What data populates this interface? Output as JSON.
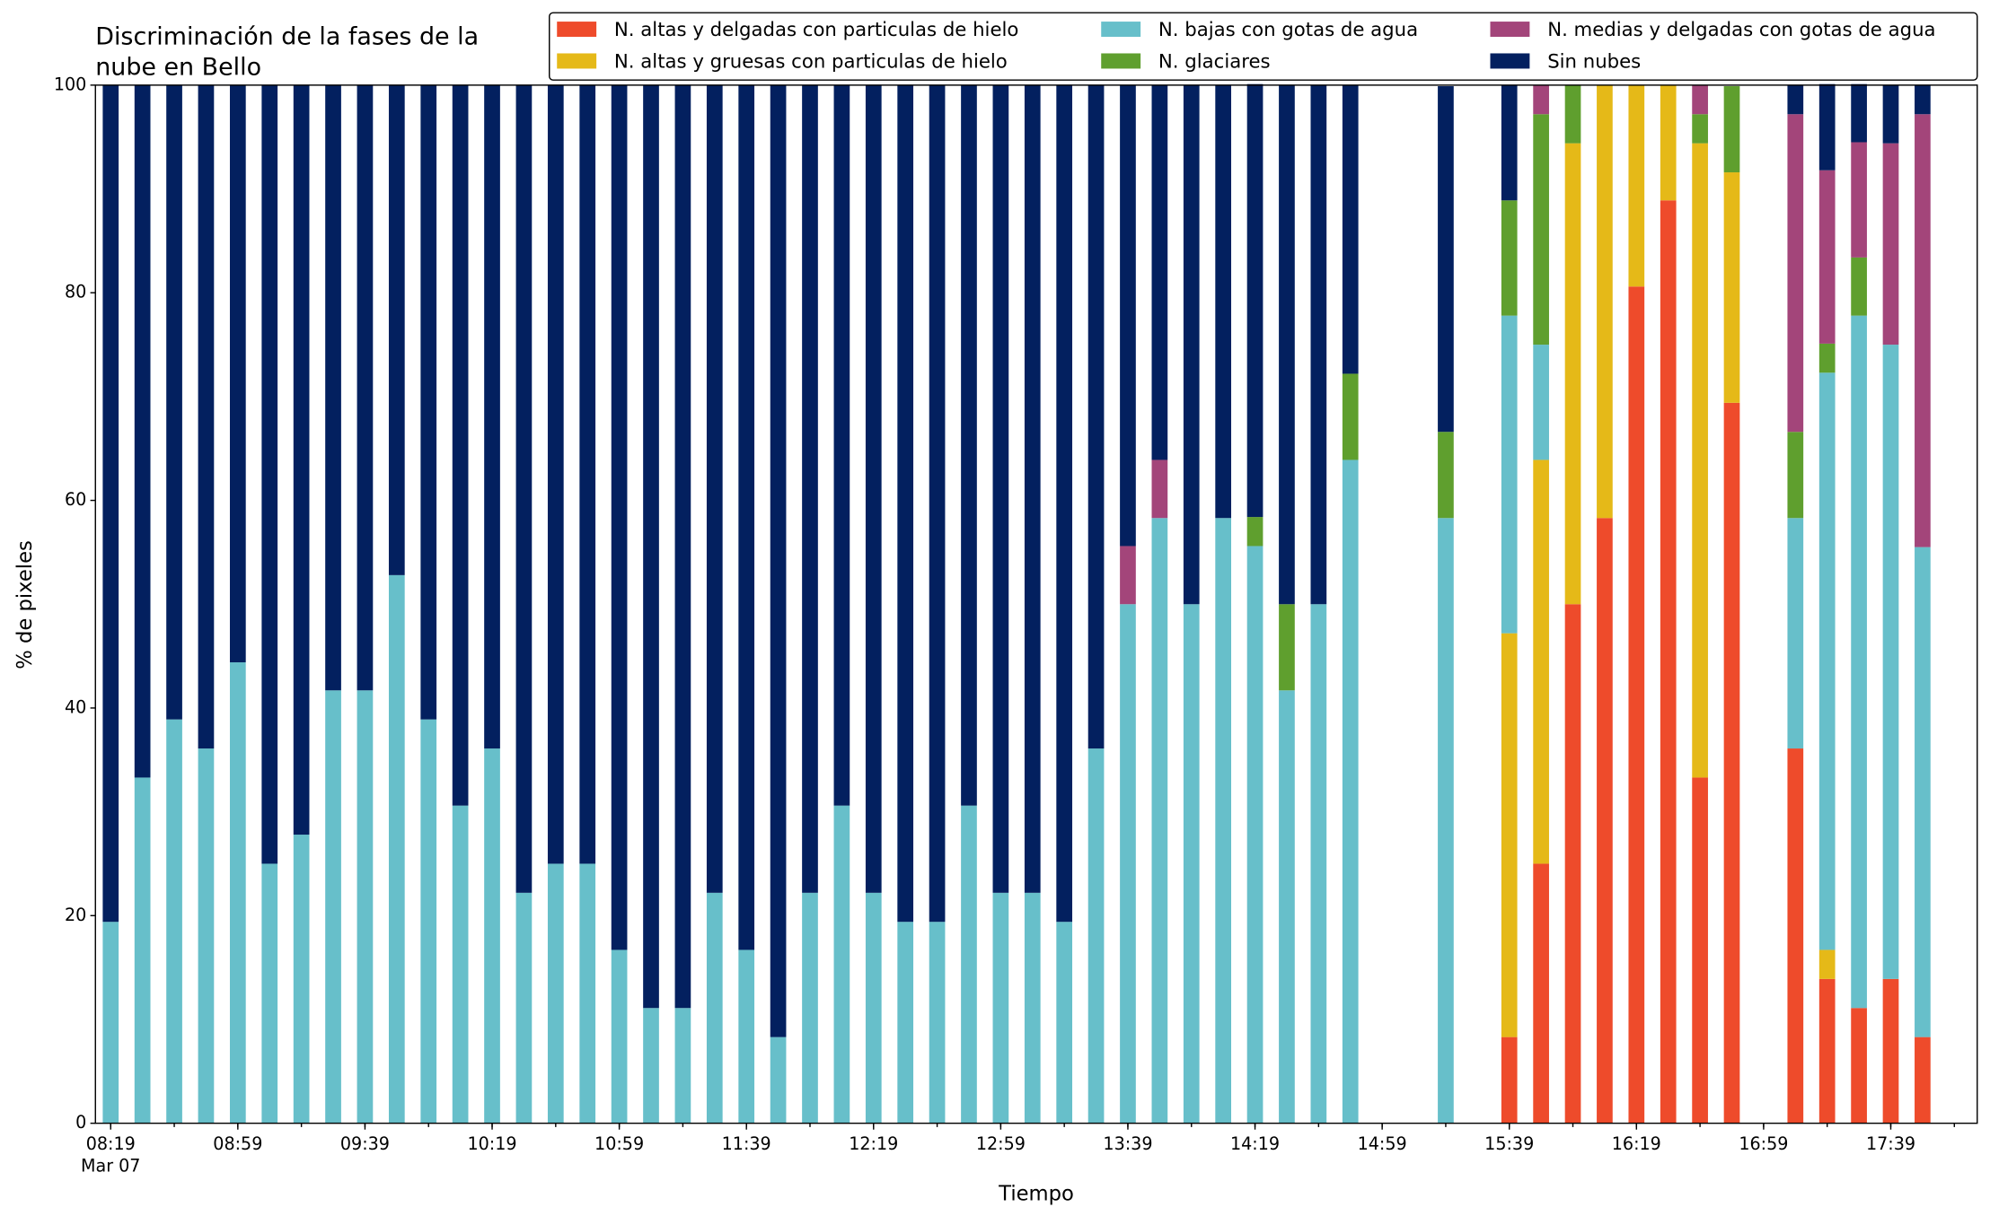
{
  "chart_data": {
    "type": "stacked_bar",
    "title": [
      "Discriminación de la fases de la",
      "nube en Bello"
    ],
    "xlabel": "Tiempo",
    "ylabel": "% de pixeles",
    "x_date_label": "Mar 07",
    "categories": [
      "08:19",
      "08:29",
      "08:39",
      "08:49",
      "08:59",
      "09:09",
      "09:19",
      "09:29",
      "09:39",
      "09:49",
      "09:59",
      "10:09",
      "10:19",
      "10:29",
      "10:39",
      "10:49",
      "10:59",
      "11:09",
      "11:19",
      "11:29",
      "11:39",
      "11:49",
      "11:59",
      "12:09",
      "12:19",
      "12:29",
      "12:39",
      "12:49",
      "12:59",
      "13:09",
      "13:19",
      "13:29",
      "13:39",
      "13:49",
      "13:59",
      "14:09",
      "14:19",
      "14:29",
      "14:39",
      "14:49",
      "14:59",
      "15:09",
      "15:19",
      "15:29",
      "15:39",
      "15:49",
      "15:59",
      "16:09",
      "16:19",
      "16:29",
      "16:39",
      "16:49",
      "16:59",
      "17:09",
      "17:19",
      "17:29",
      "17:39",
      "17:49"
    ],
    "xticks": [
      "08:19",
      "08:59",
      "09:39",
      "10:19",
      "10:59",
      "11:39",
      "12:19",
      "12:59",
      "13:39",
      "14:19",
      "14:59",
      "15:39",
      "16:19",
      "16:59",
      "17:39"
    ],
    "ylim": [
      0,
      100
    ],
    "yticks": [
      0,
      20,
      40,
      60,
      80,
      100
    ],
    "grid": false,
    "series": [
      {
        "name": "N. altas y delgadas con particulas de hielo",
        "color": "#ee4b2b",
        "values": [
          0,
          0,
          0,
          0,
          0,
          0,
          0,
          0,
          0,
          0,
          0,
          0,
          0,
          0,
          0,
          0,
          0,
          0,
          0,
          0,
          0,
          0,
          0,
          0,
          0,
          0,
          0,
          0,
          0,
          0,
          0,
          0,
          0,
          0,
          0,
          0,
          0,
          0,
          0,
          0,
          null,
          null,
          0,
          null,
          8.3,
          25,
          50,
          58.3,
          80.6,
          88.9,
          33.3,
          69.4,
          null,
          36.1,
          13.9,
          11.1,
          13.9,
          8.3
        ]
      },
      {
        "name": "N. altas y gruesas con particulas de hielo",
        "color": "#e5b918",
        "values": [
          0,
          0,
          0,
          0,
          0,
          0,
          0,
          0,
          0,
          0,
          0,
          0,
          0,
          0,
          0,
          0,
          0,
          0,
          0,
          0,
          0,
          0,
          0,
          0,
          0,
          0,
          0,
          0,
          0,
          0,
          0,
          0,
          0,
          0,
          0,
          0,
          0,
          0,
          0,
          0,
          null,
          null,
          0,
          null,
          38.9,
          38.9,
          44.4,
          41.7,
          19.4,
          11.1,
          61.1,
          22.2,
          null,
          0,
          2.8,
          0,
          0,
          0
        ]
      },
      {
        "name": "N. bajas con gotas de agua",
        "color": "#67bfca",
        "values": [
          19.4,
          33.3,
          38.9,
          36.1,
          44.4,
          25,
          27.8,
          41.7,
          41.7,
          52.8,
          38.9,
          30.6,
          36.1,
          22.2,
          25,
          25,
          16.7,
          11.1,
          11.1,
          22.2,
          16.7,
          8.3,
          22.2,
          30.6,
          22.2,
          19.4,
          19.4,
          30.6,
          22.2,
          22.2,
          19.4,
          36.1,
          50,
          58.3,
          50,
          58.3,
          55.6,
          41.7,
          50,
          63.9,
          null,
          null,
          58.3,
          null,
          30.6,
          11.1,
          0,
          0,
          0,
          0,
          0,
          0,
          null,
          22.2,
          55.6,
          66.7,
          61.1,
          47.2
        ]
      },
      {
        "name": "N. glaciares",
        "color": "#5f9f2e",
        "values": [
          0,
          0,
          0,
          0,
          0,
          0,
          0,
          0,
          0,
          0,
          0,
          0,
          0,
          0,
          0,
          0,
          0,
          0,
          0,
          0,
          0,
          0,
          0,
          0,
          0,
          0,
          0,
          0,
          0,
          0,
          0,
          0,
          0,
          0,
          0,
          0,
          2.8,
          8.3,
          0,
          8.3,
          null,
          null,
          8.3,
          null,
          11.1,
          22.2,
          5.6,
          0,
          0,
          0,
          2.8,
          8.3,
          null,
          8.3,
          2.8,
          5.6,
          0,
          0
        ]
      },
      {
        "name": "N. medias y delgadas con gotas de agua",
        "color": "#a3457a",
        "values": [
          0,
          0,
          0,
          0,
          0,
          0,
          0,
          0,
          0,
          0,
          0,
          0,
          0,
          0,
          0,
          0,
          0,
          0,
          0,
          0,
          0,
          0,
          0,
          0,
          0,
          0,
          0,
          0,
          0,
          0,
          0,
          0,
          5.6,
          5.6,
          0,
          0,
          0,
          0,
          0,
          0,
          null,
          null,
          0,
          null,
          0,
          2.8,
          0,
          0,
          0,
          0,
          2.8,
          0,
          null,
          30.6,
          16.7,
          11.1,
          19.4,
          41.7
        ]
      },
      {
        "name": "Sin nubes",
        "color": "#03205f",
        "values": [
          80.6,
          66.7,
          61.1,
          63.9,
          55.6,
          75,
          72.2,
          58.3,
          58.3,
          47.2,
          61.1,
          69.4,
          63.9,
          77.8,
          75,
          75,
          83.3,
          88.9,
          88.9,
          77.8,
          83.3,
          91.7,
          77.8,
          69.4,
          77.8,
          80.6,
          80.6,
          69.4,
          77.8,
          77.8,
          80.6,
          63.9,
          44.4,
          36.1,
          50,
          41.7,
          41.7,
          50,
          50,
          27.8,
          null,
          null,
          33.3,
          null,
          11.1,
          0,
          0,
          0,
          0,
          0,
          0,
          0,
          null,
          2.8,
          8.3,
          5.6,
          5.6,
          2.8
        ]
      }
    ]
  }
}
